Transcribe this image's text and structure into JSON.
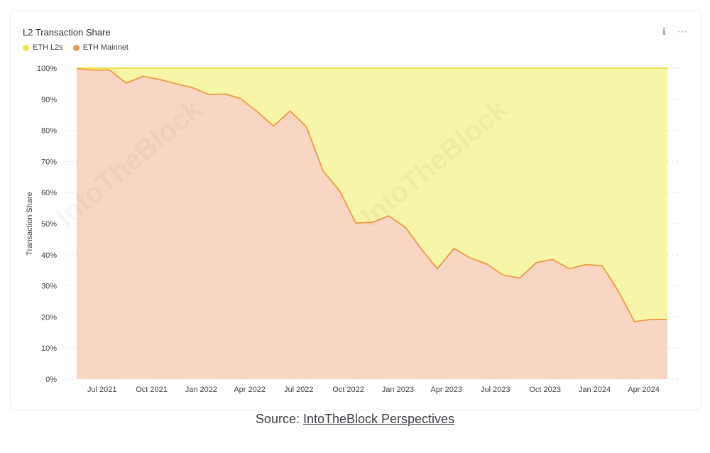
{
  "header": {
    "title": "L2 Transaction Share",
    "info_icon": "info-icon",
    "menu_icon": "more-icon"
  },
  "source": {
    "prefix": "Source: ",
    "link_text": "IntoTheBlock Perspectives"
  },
  "watermark": "IntoTheBlock",
  "colors": {
    "l2_fill": "#f6f5a8",
    "l2_line": "#efe24a",
    "mainnet_fill": "#f8d6c3",
    "mainnet_line": "#ee9a45",
    "grid": "#e3e3e3",
    "axis_text": "#3b3f47"
  },
  "chart_data": {
    "type": "area",
    "stacked": true,
    "title": "L2 Transaction Share",
    "ylabel": "Transaction Share",
    "xlabel": "",
    "ylim": [
      0,
      100
    ],
    "y_ticks": [
      "0%",
      "10%",
      "20%",
      "30%",
      "40%",
      "50%",
      "60%",
      "70%",
      "80%",
      "90%",
      "100%"
    ],
    "x_ticks": [
      "Jul 2021",
      "Oct 2021",
      "Jan 2022",
      "Apr 2022",
      "Jul 2022",
      "Oct 2022",
      "Jan 2023",
      "Apr 2023",
      "Jul 2023",
      "Oct 2023",
      "Jan 2024",
      "Apr 2024"
    ],
    "x_range": [
      "2021-05-15",
      "2024-05-15"
    ],
    "legend": {
      "position": "top-left"
    },
    "grid": true,
    "x": [
      "2021-05-15",
      "2021-06-15",
      "2021-07-15",
      "2021-08-15",
      "2021-09-15",
      "2021-10-15",
      "2021-11-15",
      "2021-12-15",
      "2022-01-15",
      "2022-02-15",
      "2022-03-15",
      "2022-04-15",
      "2022-05-15",
      "2022-06-15",
      "2022-07-15",
      "2022-08-15",
      "2022-09-15",
      "2022-10-15",
      "2022-11-15",
      "2022-12-15",
      "2023-01-15",
      "2023-02-15",
      "2023-03-15",
      "2023-04-15",
      "2023-05-15",
      "2023-06-15",
      "2023-07-15",
      "2023-08-15",
      "2023-09-15",
      "2023-10-15",
      "2023-11-15",
      "2023-12-15",
      "2024-01-15",
      "2024-02-15",
      "2024-03-15",
      "2024-04-15",
      "2024-05-15"
    ],
    "series": [
      {
        "name": "ETH L2s",
        "values": [
          0.2,
          0.6,
          0.6,
          4.8,
          2.6,
          3.6,
          5.0,
          6.2,
          8.5,
          8.3,
          9.8,
          14.0,
          18.6,
          13.8,
          18.8,
          33.0,
          39.5,
          49.8,
          49.6,
          47.5,
          51.2,
          58.5,
          64.5,
          58.0,
          61.0,
          63.0,
          66.5,
          67.5,
          62.5,
          61.5,
          64.5,
          63.2,
          63.5,
          72.0,
          81.5,
          80.8,
          80.8
        ]
      },
      {
        "name": "ETH Mainnet",
        "values": [
          99.8,
          99.4,
          99.4,
          95.2,
          97.4,
          96.4,
          95.0,
          93.8,
          91.5,
          91.7,
          90.2,
          86.0,
          81.4,
          86.2,
          81.2,
          67.0,
          60.5,
          50.2,
          50.4,
          52.5,
          48.8,
          41.5,
          35.5,
          42.0,
          39.0,
          37.0,
          33.5,
          32.5,
          37.5,
          38.5,
          35.5,
          36.8,
          36.5,
          28.0,
          18.5,
          19.2,
          19.2
        ]
      }
    ]
  }
}
